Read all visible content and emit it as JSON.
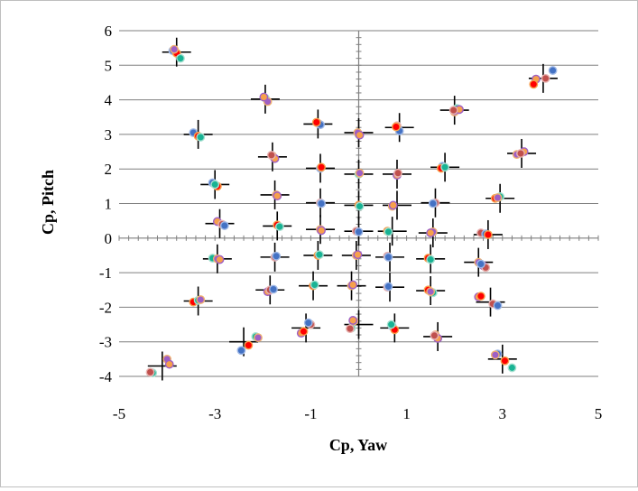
{
  "chart_data": {
    "type": "scatter",
    "xlabel": "Cp, Yaw",
    "ylabel": "Cp, Pitch",
    "xlim": [
      -5,
      5
    ],
    "ylim": [
      -4,
      6
    ],
    "x_ticks": [
      "-5",
      "-3",
      "-1",
      "1",
      "3",
      "5"
    ],
    "y_ticks": [
      "-4",
      "-3",
      "-2",
      "-1",
      "0",
      "1",
      "2",
      "3",
      "4",
      "5",
      "6"
    ],
    "grid": "horizontal",
    "legend": "none",
    "colors": {
      "reference_marker": "#000000",
      "gridline": "#7f7f7f",
      "series_1": "#4472c4",
      "series_2": "#ff0000",
      "series_3": "#19b394",
      "series_4": "#9e5fc5",
      "series_5": "#f7a04b",
      "series_6": "#c0504d"
    },
    "reference_points": [
      [
        -3.8,
        5.38
      ],
      [
        3.85,
        4.62
      ],
      [
        -1.95,
        4.02
      ],
      [
        -0.85,
        3.3
      ],
      [
        0.0,
        3.05
      ],
      [
        0.85,
        3.2
      ],
      [
        2.0,
        3.7
      ],
      [
        -3.35,
        3.0
      ],
      [
        -1.8,
        2.35
      ],
      [
        -0.8,
        2.02
      ],
      [
        0.0,
        1.85
      ],
      [
        0.8,
        1.85
      ],
      [
        1.8,
        2.05
      ],
      [
        3.4,
        2.45
      ],
      [
        -3.0,
        1.55
      ],
      [
        -1.75,
        1.25
      ],
      [
        -0.8,
        1.02
      ],
      [
        0.0,
        0.95
      ],
      [
        0.8,
        0.95
      ],
      [
        1.6,
        1.02
      ],
      [
        2.95,
        1.15
      ],
      [
        -2.9,
        0.42
      ],
      [
        -1.7,
        0.35
      ],
      [
        -0.8,
        0.25
      ],
      [
        0.0,
        0.2
      ],
      [
        0.7,
        0.2
      ],
      [
        1.55,
        0.15
      ],
      [
        2.7,
        0.1
      ],
      [
        -2.95,
        -0.6
      ],
      [
        -1.75,
        -0.55
      ],
      [
        -0.85,
        -0.5
      ],
      [
        -0.05,
        -0.5
      ],
      [
        0.65,
        -0.55
      ],
      [
        1.5,
        -0.6
      ],
      [
        2.5,
        -0.7
      ],
      [
        -3.35,
        -1.82
      ],
      [
        -1.85,
        -1.5
      ],
      [
        -0.95,
        -1.38
      ],
      [
        -0.15,
        -1.38
      ],
      [
        0.65,
        -1.42
      ],
      [
        1.5,
        -1.52
      ],
      [
        2.75,
        -1.85
      ],
      [
        -4.1,
        -3.7
      ],
      [
        -2.4,
        -3.0
      ],
      [
        -1.1,
        -2.6
      ],
      [
        0.0,
        -2.5
      ],
      [
        0.75,
        -2.6
      ],
      [
        1.65,
        -2.85
      ],
      [
        3.0,
        -3.5
      ]
    ],
    "measured_points": [
      [
        -3.88,
        5.42
      ],
      [
        -3.8,
        5.35
      ],
      [
        -3.72,
        5.2
      ],
      [
        -3.85,
        5.46
      ],
      [
        3.7,
        4.6
      ],
      [
        3.9,
        4.62
      ],
      [
        4.05,
        4.85
      ],
      [
        3.65,
        4.45
      ],
      [
        -1.95,
        4.05
      ],
      [
        -1.9,
        3.95
      ],
      [
        -1.98,
        4.08
      ],
      [
        -0.85,
        3.32
      ],
      [
        -0.8,
        3.28
      ],
      [
        -0.88,
        3.35
      ],
      [
        0.0,
        3.0
      ],
      [
        -0.02,
        3.05
      ],
      [
        0.02,
        2.98
      ],
      [
        0.8,
        3.25
      ],
      [
        0.85,
        3.1
      ],
      [
        0.78,
        3.22
      ],
      [
        2.05,
        3.75
      ],
      [
        2.0,
        3.65
      ],
      [
        2.1,
        3.72
      ],
      [
        1.98,
        3.7
      ],
      [
        -3.45,
        3.05
      ],
      [
        -3.35,
        2.95
      ],
      [
        -3.3,
        2.92
      ],
      [
        -1.8,
        2.38
      ],
      [
        -1.75,
        2.3
      ],
      [
        -1.82,
        2.4
      ],
      [
        -0.8,
        2.02
      ],
      [
        -0.78,
        2.05
      ],
      [
        0.0,
        1.85
      ],
      [
        0.02,
        1.88
      ],
      [
        0.8,
        1.82
      ],
      [
        0.82,
        1.88
      ],
      [
        1.75,
        2.08
      ],
      [
        1.72,
        2.02
      ],
      [
        1.8,
        2.05
      ],
      [
        3.3,
        2.42
      ],
      [
        3.45,
        2.5
      ],
      [
        3.38,
        2.45
      ],
      [
        -3.05,
        1.6
      ],
      [
        -2.95,
        1.5
      ],
      [
        -3.0,
        1.55
      ],
      [
        -1.72,
        1.25
      ],
      [
        -1.7,
        1.22
      ],
      [
        -0.8,
        1.02
      ],
      [
        -0.78,
        1.0
      ],
      [
        0.0,
        0.95
      ],
      [
        0.02,
        0.92
      ],
      [
        0.7,
        0.92
      ],
      [
        0.72,
        0.95
      ],
      [
        1.6,
        1.02
      ],
      [
        1.55,
        1.0
      ],
      [
        2.85,
        1.15
      ],
      [
        2.95,
        1.2
      ],
      [
        2.9,
        1.17
      ],
      [
        -2.95,
        0.48
      ],
      [
        -2.85,
        0.4
      ],
      [
        -2.8,
        0.36
      ],
      [
        -1.7,
        0.38
      ],
      [
        -1.65,
        0.33
      ],
      [
        -0.8,
        0.25
      ],
      [
        -0.78,
        0.22
      ],
      [
        -0.05,
        0.2
      ],
      [
        0.0,
        0.18
      ],
      [
        0.6,
        0.2
      ],
      [
        0.62,
        0.18
      ],
      [
        1.55,
        0.18
      ],
      [
        1.5,
        0.15
      ],
      [
        2.55,
        0.15
      ],
      [
        2.65,
        0.12
      ],
      [
        2.7,
        0.1
      ],
      [
        -3.05,
        -0.58
      ],
      [
        -2.95,
        -0.6
      ],
      [
        -2.9,
        -0.62
      ],
      [
        -1.75,
        -0.55
      ],
      [
        -1.72,
        -0.52
      ],
      [
        -0.85,
        -0.5
      ],
      [
        -0.82,
        -0.48
      ],
      [
        -0.05,
        -0.5
      ],
      [
        -0.02,
        -0.48
      ],
      [
        0.6,
        -0.52
      ],
      [
        0.62,
        -0.55
      ],
      [
        1.45,
        -0.58
      ],
      [
        1.5,
        -0.62
      ],
      [
        2.5,
        -0.7
      ],
      [
        2.6,
        -0.8
      ],
      [
        2.65,
        -0.85
      ],
      [
        2.55,
        -0.75
      ],
      [
        -3.45,
        -1.85
      ],
      [
        -3.35,
        -1.8
      ],
      [
        -3.3,
        -1.78
      ],
      [
        -1.9,
        -1.55
      ],
      [
        -1.85,
        -1.5
      ],
      [
        -1.78,
        -1.48
      ],
      [
        -0.95,
        -1.38
      ],
      [
        -0.92,
        -1.35
      ],
      [
        -0.15,
        -1.38
      ],
      [
        -0.12,
        -1.35
      ],
      [
        0.6,
        -1.42
      ],
      [
        0.62,
        -1.4
      ],
      [
        1.45,
        -1.5
      ],
      [
        1.55,
        -1.58
      ],
      [
        1.5,
        -1.55
      ],
      [
        2.5,
        -1.7
      ],
      [
        2.8,
        -1.9
      ],
      [
        2.9,
        -1.95
      ],
      [
        2.55,
        -1.68
      ],
      [
        -4.3,
        -3.9
      ],
      [
        -4.0,
        -3.5
      ],
      [
        -3.95,
        -3.65
      ],
      [
        -4.35,
        -3.88
      ],
      [
        -2.45,
        -3.25
      ],
      [
        -2.3,
        -3.1
      ],
      [
        -2.15,
        -2.85
      ],
      [
        -2.1,
        -2.88
      ],
      [
        -1.2,
        -2.75
      ],
      [
        -1.0,
        -2.5
      ],
      [
        -1.05,
        -2.45
      ],
      [
        -1.15,
        -2.7
      ],
      [
        -0.15,
        -2.6
      ],
      [
        -0.1,
        -2.4
      ],
      [
        -0.12,
        -2.38
      ],
      [
        -0.18,
        -2.62
      ],
      [
        0.7,
        -2.55
      ],
      [
        0.75,
        -2.65
      ],
      [
        0.68,
        -2.5
      ],
      [
        1.6,
        -2.8
      ],
      [
        1.65,
        -2.9
      ],
      [
        1.58,
        -2.82
      ],
      [
        2.9,
        -3.35
      ],
      [
        3.05,
        -3.55
      ],
      [
        3.2,
        -3.75
      ],
      [
        2.85,
        -3.38
      ]
    ]
  }
}
